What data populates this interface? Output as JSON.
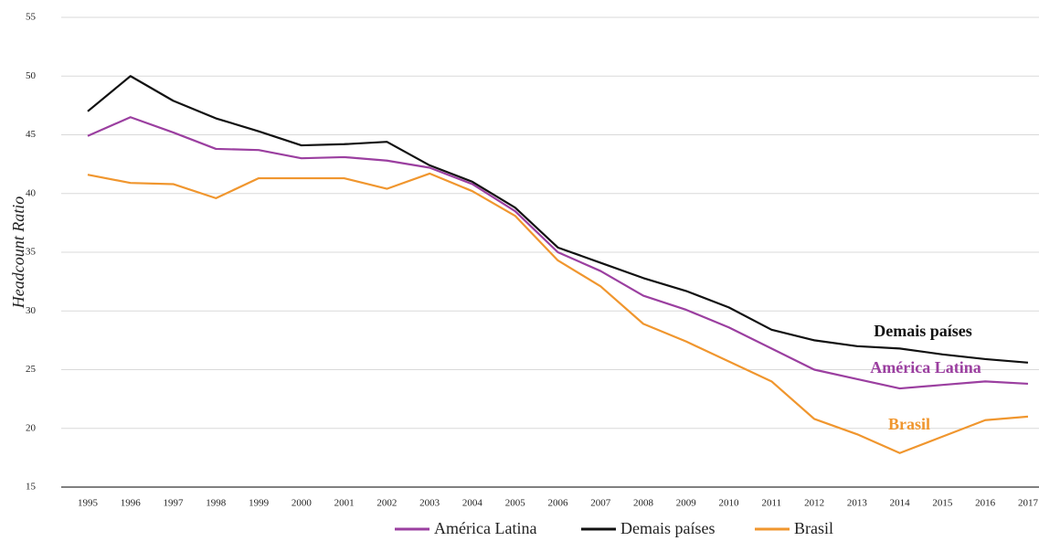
{
  "chart_data": {
    "type": "line",
    "y_label": "Headcount Ratio",
    "categories": [
      "1995",
      "1996",
      "1997",
      "1998",
      "1999",
      "2000",
      "2001",
      "2002",
      "2003",
      "2004",
      "2005",
      "2006",
      "2007",
      "2008",
      "2009",
      "2010",
      "2011",
      "2012",
      "2013",
      "2014",
      "2015",
      "2016",
      "2017"
    ],
    "series": [
      {
        "name": "América Latina",
        "color": "#9b3fa0",
        "values": [
          44.9,
          46.5,
          45.2,
          43.8,
          43.7,
          43.0,
          43.1,
          42.8,
          42.2,
          40.8,
          38.5,
          35.0,
          33.4,
          31.3,
          30.1,
          28.6,
          26.8,
          25.0,
          24.2,
          23.4,
          23.7,
          24.0,
          23.8
        ]
      },
      {
        "name": "Demais países",
        "color": "#111111",
        "values": [
          47.0,
          50.0,
          47.9,
          46.4,
          45.3,
          44.1,
          44.2,
          44.4,
          42.4,
          41.0,
          38.8,
          35.4,
          34.1,
          32.8,
          31.7,
          30.3,
          28.4,
          27.5,
          27.0,
          26.8,
          26.3,
          25.9,
          25.6
        ]
      },
      {
        "name": "Brasil",
        "color": "#f0962e",
        "values": [
          41.6,
          40.9,
          40.8,
          39.6,
          41.3,
          41.3,
          41.3,
          40.4,
          41.7,
          40.2,
          38.1,
          34.3,
          32.1,
          28.9,
          27.4,
          25.7,
          24.0,
          20.8,
          19.5,
          17.9,
          19.3,
          20.7,
          21.0
        ]
      }
    ],
    "ylim": [
      15,
      55
    ],
    "yticks": [
      15,
      20,
      25,
      30,
      35,
      40,
      45,
      50,
      55
    ],
    "grid": true
  }
}
